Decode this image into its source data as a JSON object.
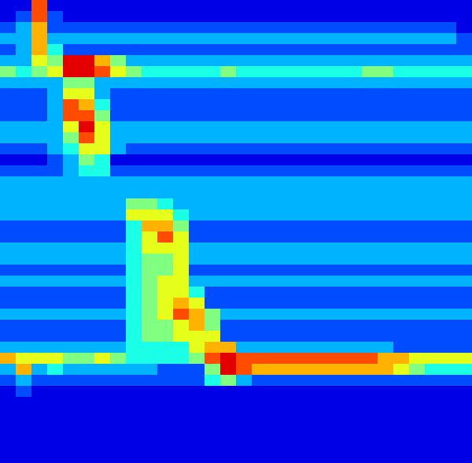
{
  "chart_data": {
    "type": "heatmap",
    "xlim": [
      0,
      30
    ],
    "ylim": [
      0,
      42
    ],
    "tick_labels": false,
    "color_range": [
      0,
      10
    ],
    "cells": [
      [
        1,
        1,
        8,
        1,
        1,
        1,
        1,
        1,
        1,
        1,
        1,
        1,
        1,
        1,
        1,
        1,
        1,
        1,
        1,
        1,
        1,
        1,
        1,
        1,
        1,
        1,
        1,
        1,
        1,
        1
      ],
      [
        1,
        2,
        8,
        2,
        1,
        1,
        1,
        1,
        1,
        1,
        1,
        1,
        1,
        1,
        1,
        1,
        1,
        1,
        1,
        1,
        1,
        1,
        1,
        1,
        1,
        1,
        1,
        1,
        1,
        1
      ],
      [
        2,
        3,
        7,
        2,
        2,
        2,
        2,
        2,
        2,
        2,
        2,
        2,
        2,
        2,
        2,
        2,
        2,
        2,
        2,
        2,
        2,
        2,
        2,
        2,
        2,
        2,
        2,
        2,
        2,
        1
      ],
      [
        3,
        3,
        7,
        3,
        3,
        3,
        3,
        3,
        3,
        3,
        3,
        3,
        3,
        3,
        3,
        3,
        3,
        3,
        3,
        3,
        3,
        3,
        3,
        3,
        3,
        3,
        3,
        3,
        3,
        2
      ],
      [
        2,
        3,
        7,
        4,
        2,
        2,
        2,
        2,
        2,
        2,
        2,
        2,
        2,
        2,
        2,
        2,
        2,
        2,
        2,
        2,
        2,
        2,
        2,
        2,
        2,
        2,
        2,
        2,
        2,
        2
      ],
      [
        3,
        3,
        6,
        5,
        9,
        9,
        7,
        5,
        3,
        3,
        3,
        3,
        3,
        3,
        3,
        3,
        3,
        3,
        3,
        3,
        3,
        3,
        3,
        3,
        3,
        3,
        3,
        3,
        3,
        3
      ],
      [
        5,
        4,
        5,
        6,
        9,
        9,
        8,
        6,
        5,
        4,
        4,
        4,
        4,
        4,
        5,
        4,
        4,
        4,
        4,
        4,
        4,
        4,
        4,
        5,
        5,
        4,
        4,
        4,
        4,
        4
      ],
      [
        3,
        3,
        3,
        3,
        5,
        5,
        3,
        3,
        3,
        3,
        3,
        3,
        3,
        3,
        3,
        3,
        3,
        3,
        3,
        3,
        3,
        3,
        3,
        3,
        3,
        3,
        3,
        3,
        3,
        3
      ],
      [
        2,
        2,
        2,
        3,
        6,
        6,
        3,
        2,
        2,
        2,
        2,
        2,
        2,
        2,
        2,
        2,
        2,
        2,
        2,
        2,
        2,
        2,
        2,
        2,
        2,
        2,
        2,
        2,
        2,
        2
      ],
      [
        2,
        2,
        2,
        3,
        8,
        7,
        4,
        2,
        2,
        2,
        2,
        2,
        2,
        2,
        2,
        2,
        2,
        2,
        2,
        2,
        2,
        2,
        2,
        2,
        2,
        2,
        2,
        2,
        2,
        2
      ],
      [
        2,
        2,
        2,
        3,
        8,
        8,
        5,
        2,
        2,
        2,
        2,
        2,
        2,
        2,
        2,
        2,
        2,
        2,
        2,
        2,
        2,
        2,
        2,
        2,
        2,
        2,
        2,
        2,
        2,
        2
      ],
      [
        3,
        3,
        3,
        3,
        6,
        9,
        6,
        3,
        3,
        3,
        3,
        3,
        3,
        3,
        3,
        3,
        3,
        3,
        3,
        3,
        3,
        3,
        3,
        3,
        3,
        3,
        3,
        3,
        3,
        3
      ],
      [
        3,
        3,
        3,
        3,
        5,
        8,
        6,
        3,
        3,
        3,
        3,
        3,
        3,
        3,
        3,
        3,
        3,
        3,
        3,
        3,
        3,
        3,
        3,
        3,
        3,
        3,
        3,
        3,
        3,
        3
      ],
      [
        2,
        2,
        2,
        3,
        4,
        6,
        6,
        3,
        2,
        2,
        2,
        2,
        2,
        2,
        2,
        2,
        2,
        2,
        2,
        2,
        2,
        2,
        2,
        2,
        2,
        2,
        2,
        2,
        2,
        2
      ],
      [
        1,
        1,
        1,
        2,
        3,
        5,
        4,
        1,
        1,
        1,
        1,
        1,
        1,
        1,
        1,
        1,
        1,
        1,
        1,
        1,
        1,
        1,
        1,
        1,
        1,
        1,
        1,
        1,
        1,
        1
      ],
      [
        2,
        2,
        2,
        2,
        3,
        4,
        4,
        2,
        2,
        2,
        2,
        2,
        2,
        2,
        2,
        2,
        2,
        2,
        2,
        2,
        2,
        2,
        2,
        2,
        2,
        2,
        2,
        2,
        2,
        2
      ],
      [
        3,
        3,
        3,
        3,
        3,
        3,
        3,
        3,
        3,
        3,
        3,
        3,
        3,
        3,
        3,
        3,
        3,
        3,
        3,
        3,
        3,
        3,
        3,
        3,
        3,
        3,
        3,
        3,
        3,
        3
      ],
      [
        3,
        3,
        3,
        3,
        3,
        3,
        3,
        3,
        3,
        3,
        3,
        3,
        3,
        3,
        3,
        3,
        3,
        3,
        3,
        3,
        3,
        3,
        3,
        3,
        3,
        3,
        3,
        3,
        3,
        3
      ],
      [
        3,
        3,
        3,
        3,
        3,
        3,
        3,
        3,
        5,
        5,
        4,
        3,
        3,
        3,
        3,
        3,
        3,
        3,
        3,
        3,
        3,
        3,
        3,
        3,
        3,
        3,
        3,
        3,
        3,
        3
      ],
      [
        3,
        3,
        3,
        3,
        3,
        3,
        3,
        3,
        6,
        6,
        6,
        4,
        3,
        3,
        3,
        3,
        3,
        3,
        3,
        3,
        3,
        3,
        3,
        3,
        3,
        3,
        3,
        3,
        3,
        3
      ],
      [
        2,
        2,
        2,
        2,
        2,
        2,
        2,
        2,
        4,
        7,
        7,
        5,
        2,
        2,
        2,
        2,
        2,
        2,
        2,
        2,
        2,
        2,
        2,
        2,
        2,
        2,
        2,
        2,
        2,
        2
      ],
      [
        2,
        2,
        2,
        2,
        2,
        2,
        2,
        2,
        4,
        6,
        8,
        6,
        2,
        2,
        2,
        2,
        2,
        2,
        2,
        2,
        2,
        2,
        2,
        2,
        2,
        2,
        2,
        2,
        2,
        2
      ],
      [
        3,
        3,
        3,
        3,
        3,
        3,
        3,
        3,
        4,
        6,
        6,
        6,
        3,
        3,
        3,
        3,
        3,
        3,
        3,
        3,
        3,
        3,
        3,
        3,
        3,
        3,
        3,
        3,
        3,
        3
      ],
      [
        3,
        3,
        3,
        3,
        3,
        3,
        3,
        3,
        4,
        5,
        5,
        6,
        3,
        3,
        3,
        3,
        3,
        3,
        3,
        3,
        3,
        3,
        3,
        3,
        3,
        3,
        3,
        3,
        3,
        3
      ],
      [
        2,
        2,
        2,
        2,
        2,
        2,
        2,
        2,
        4,
        5,
        5,
        6,
        2,
        2,
        2,
        2,
        2,
        2,
        2,
        2,
        2,
        2,
        2,
        2,
        2,
        2,
        2,
        2,
        2,
        2
      ],
      [
        3,
        3,
        3,
        3,
        3,
        3,
        3,
        3,
        4,
        5,
        6,
        6,
        3,
        3,
        3,
        3,
        3,
        3,
        3,
        3,
        3,
        3,
        3,
        3,
        3,
        3,
        3,
        3,
        3,
        3
      ],
      [
        2,
        2,
        2,
        2,
        2,
        2,
        2,
        2,
        4,
        5,
        6,
        6,
        4,
        2,
        2,
        2,
        2,
        2,
        2,
        2,
        2,
        2,
        2,
        2,
        2,
        2,
        2,
        2,
        2,
        2
      ],
      [
        2,
        2,
        2,
        2,
        2,
        2,
        2,
        2,
        4,
        5,
        6,
        7,
        6,
        2,
        2,
        2,
        2,
        2,
        2,
        2,
        2,
        2,
        2,
        2,
        2,
        2,
        2,
        2,
        2,
        2
      ],
      [
        3,
        3,
        3,
        3,
        3,
        3,
        3,
        3,
        4,
        5,
        6,
        8,
        7,
        5,
        3,
        3,
        3,
        3,
        3,
        3,
        3,
        3,
        3,
        3,
        3,
        3,
        3,
        3,
        3,
        3
      ],
      [
        2,
        2,
        2,
        2,
        2,
        2,
        2,
        2,
        4,
        5,
        5,
        6,
        7,
        5,
        2,
        2,
        2,
        2,
        2,
        2,
        2,
        2,
        2,
        2,
        2,
        2,
        2,
        2,
        2,
        2
      ],
      [
        2,
        2,
        2,
        2,
        2,
        2,
        2,
        2,
        4,
        5,
        5,
        6,
        6,
        6,
        2,
        2,
        2,
        2,
        2,
        2,
        2,
        2,
        2,
        2,
        2,
        2,
        2,
        2,
        2,
        2
      ],
      [
        3,
        3,
        3,
        3,
        3,
        3,
        3,
        3,
        4,
        4,
        4,
        4,
        6,
        7,
        7,
        3,
        3,
        3,
        3,
        3,
        3,
        3,
        3,
        3,
        3,
        2,
        2,
        2,
        2,
        2
      ],
      [
        7,
        6,
        6,
        6,
        5,
        5,
        6,
        5,
        4,
        4,
        4,
        4,
        5,
        8,
        9,
        8,
        8,
        8,
        8,
        8,
        8,
        8,
        8,
        8,
        7,
        7,
        6,
        6,
        6,
        6
      ],
      [
        3,
        7,
        3,
        4,
        3,
        3,
        3,
        3,
        3,
        3,
        2,
        2,
        2,
        5,
        9,
        8,
        7,
        7,
        7,
        7,
        7,
        7,
        7,
        7,
        7,
        6,
        5,
        4,
        4,
        4
      ],
      [
        2,
        3,
        2,
        2,
        2,
        2,
        2,
        2,
        2,
        2,
        2,
        2,
        2,
        4,
        5,
        3,
        2,
        2,
        2,
        2,
        2,
        2,
        2,
        2,
        2,
        2,
        2,
        2,
        2,
        2
      ],
      [
        1,
        2,
        1,
        1,
        1,
        1,
        1,
        1,
        1,
        1,
        1,
        1,
        1,
        1,
        1,
        1,
        1,
        1,
        1,
        1,
        1,
        1,
        1,
        1,
        1,
        1,
        1,
        1,
        1,
        1
      ],
      [
        1,
        1,
        1,
        1,
        1,
        1,
        1,
        1,
        1,
        1,
        1,
        1,
        1,
        1,
        1,
        1,
        1,
        1,
        1,
        1,
        1,
        1,
        1,
        1,
        1,
        1,
        1,
        1,
        1,
        1
      ],
      [
        1,
        1,
        1,
        1,
        1,
        1,
        1,
        1,
        1,
        1,
        1,
        1,
        1,
        1,
        1,
        1,
        1,
        1,
        1,
        1,
        1,
        1,
        1,
        1,
        1,
        1,
        1,
        1,
        1,
        1
      ],
      [
        1,
        1,
        1,
        1,
        1,
        1,
        1,
        1,
        1,
        1,
        1,
        1,
        1,
        1,
        1,
        1,
        1,
        1,
        1,
        1,
        1,
        1,
        1,
        1,
        1,
        1,
        1,
        1,
        1,
        1
      ],
      [
        1,
        1,
        1,
        1,
        1,
        1,
        1,
        1,
        1,
        1,
        1,
        1,
        1,
        1,
        1,
        1,
        1,
        1,
        1,
        1,
        1,
        1,
        1,
        1,
        1,
        1,
        1,
        1,
        1,
        1
      ],
      [
        1,
        1,
        1,
        1,
        1,
        1,
        1,
        1,
        1,
        1,
        1,
        1,
        1,
        1,
        1,
        1,
        1,
        1,
        1,
        1,
        1,
        1,
        1,
        1,
        1,
        1,
        1,
        1,
        1,
        1
      ],
      [
        1,
        1,
        1,
        1,
        1,
        1,
        1,
        1,
        1,
        1,
        1,
        1,
        1,
        1,
        1,
        1,
        1,
        1,
        1,
        1,
        1,
        1,
        1,
        1,
        1,
        1,
        1,
        1,
        1,
        1
      ]
    ]
  }
}
